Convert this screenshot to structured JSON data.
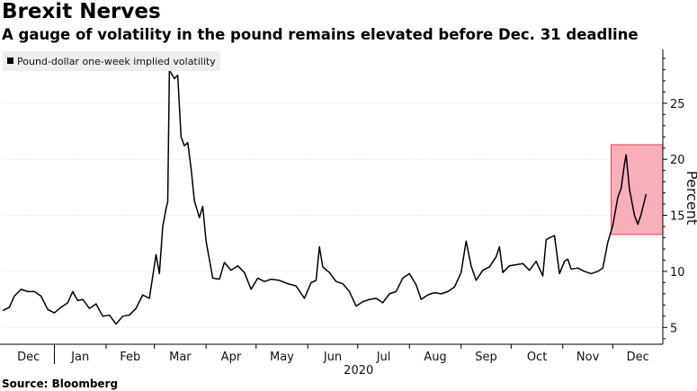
{
  "header": {
    "title": "Brexit Nerves",
    "subtitle": "A gauge of volatility in the pound remains elevated before Dec. 31 deadline"
  },
  "footer": {
    "source": "Source: Bloomberg"
  },
  "colors": {
    "line": "#000000",
    "grid": "#d9d9d9",
    "highlight_fill": "#f7a1ae",
    "highlight_stroke": "#e8394f",
    "legend_bg": "#eeeeee"
  },
  "chart_data": {
    "type": "line",
    "title": "Brexit Nerves",
    "subtitle": "A gauge of volatility in the pound remains elevated before Dec. 31 deadline",
    "ylabel": "Percent",
    "xlabel": "2020",
    "ylim": [
      3.5,
      29.8
    ],
    "yticks": [
      5,
      10,
      15,
      20,
      25
    ],
    "y_axis_side": "right",
    "grid": "horizontal dotted",
    "legend": "top-left",
    "x_start": "2019-12-01",
    "x_end": "2020-12-31",
    "x_tick_labels": [
      "Dec",
      "Jan",
      "Feb",
      "Mar",
      "Apr",
      "May",
      "Jun",
      "Jul",
      "Aug",
      "Sep",
      "Oct",
      "Nov",
      "Dec"
    ],
    "x_year_label": "2020",
    "series": [
      {
        "name": "Pound-dollar one-week implied volatility",
        "color": "#000000",
        "points": [
          [
            "2019-12-01",
            6.5
          ],
          [
            "2019-12-05",
            6.8
          ],
          [
            "2019-12-08",
            7.8
          ],
          [
            "2019-12-12",
            8.4
          ],
          [
            "2019-12-16",
            8.2
          ],
          [
            "2019-12-20",
            8.2
          ],
          [
            "2019-12-24",
            7.8
          ],
          [
            "2019-12-28",
            6.6
          ],
          [
            "2020-01-01",
            6.3
          ],
          [
            "2020-01-05",
            6.8
          ],
          [
            "2020-01-09",
            7.2
          ],
          [
            "2020-01-12",
            8.2
          ],
          [
            "2020-01-15",
            7.4
          ],
          [
            "2020-01-18",
            7.5
          ],
          [
            "2020-01-22",
            6.7
          ],
          [
            "2020-01-26",
            7.1
          ],
          [
            "2020-01-30",
            6.0
          ],
          [
            "2020-02-03",
            6.1
          ],
          [
            "2020-02-07",
            5.3
          ],
          [
            "2020-02-11",
            6.0
          ],
          [
            "2020-02-15",
            6.1
          ],
          [
            "2020-02-19",
            6.7
          ],
          [
            "2020-02-23",
            7.9
          ],
          [
            "2020-02-27",
            7.6
          ],
          [
            "2020-03-02",
            11.5
          ],
          [
            "2020-03-04",
            9.8
          ],
          [
            "2020-03-06",
            14.0
          ],
          [
            "2020-03-08",
            15.6
          ],
          [
            "2020-03-09",
            16.2
          ],
          [
            "2020-03-10",
            27.9
          ],
          [
            "2020-03-11",
            27.7
          ],
          [
            "2020-03-13",
            27.2
          ],
          [
            "2020-03-15",
            27.5
          ],
          [
            "2020-03-17",
            22.0
          ],
          [
            "2020-03-19",
            21.2
          ],
          [
            "2020-03-21",
            21.5
          ],
          [
            "2020-03-23",
            19.2
          ],
          [
            "2020-03-25",
            16.3
          ],
          [
            "2020-03-28",
            14.8
          ],
          [
            "2020-03-30",
            15.8
          ],
          [
            "2020-04-01",
            12.7
          ],
          [
            "2020-04-05",
            9.4
          ],
          [
            "2020-04-09",
            9.3
          ],
          [
            "2020-04-12",
            10.8
          ],
          [
            "2020-04-16",
            10.1
          ],
          [
            "2020-04-20",
            10.5
          ],
          [
            "2020-04-24",
            9.9
          ],
          [
            "2020-04-28",
            8.4
          ],
          [
            "2020-05-02",
            9.4
          ],
          [
            "2020-05-06",
            9.1
          ],
          [
            "2020-05-10",
            9.3
          ],
          [
            "2020-05-15",
            9.2
          ],
          [
            "2020-05-20",
            8.9
          ],
          [
            "2020-05-25",
            8.7
          ],
          [
            "2020-05-30",
            7.6
          ],
          [
            "2020-06-03",
            9.0
          ],
          [
            "2020-06-06",
            9.2
          ],
          [
            "2020-06-08",
            12.2
          ],
          [
            "2020-06-10",
            10.4
          ],
          [
            "2020-06-14",
            9.9
          ],
          [
            "2020-06-18",
            9.1
          ],
          [
            "2020-06-22",
            8.9
          ],
          [
            "2020-06-26",
            8.2
          ],
          [
            "2020-06-30",
            6.9
          ],
          [
            "2020-07-04",
            7.3
          ],
          [
            "2020-07-08",
            7.5
          ],
          [
            "2020-07-12",
            7.6
          ],
          [
            "2020-07-16",
            7.2
          ],
          [
            "2020-07-20",
            8.0
          ],
          [
            "2020-07-24",
            8.2
          ],
          [
            "2020-07-28",
            9.4
          ],
          [
            "2020-08-01",
            9.8
          ],
          [
            "2020-08-05",
            8.8
          ],
          [
            "2020-08-08",
            7.5
          ],
          [
            "2020-08-12",
            7.9
          ],
          [
            "2020-08-16",
            8.1
          ],
          [
            "2020-08-20",
            8.0
          ],
          [
            "2020-08-24",
            8.2
          ],
          [
            "2020-08-28",
            8.6
          ],
          [
            "2020-09-01",
            9.9
          ],
          [
            "2020-09-04",
            12.7
          ],
          [
            "2020-09-07",
            10.5
          ],
          [
            "2020-09-10",
            9.2
          ],
          [
            "2020-09-14",
            10.1
          ],
          [
            "2020-09-18",
            10.4
          ],
          [
            "2020-09-22",
            11.3
          ],
          [
            "2020-09-24",
            12.2
          ],
          [
            "2020-09-26",
            9.9
          ],
          [
            "2020-09-30",
            10.5
          ],
          [
            "2020-10-04",
            10.6
          ],
          [
            "2020-10-08",
            10.7
          ],
          [
            "2020-10-12",
            10.1
          ],
          [
            "2020-10-16",
            10.9
          ],
          [
            "2020-10-20",
            9.6
          ],
          [
            "2020-10-22",
            12.8
          ],
          [
            "2020-10-24",
            13.0
          ],
          [
            "2020-10-27",
            13.2
          ],
          [
            "2020-10-30",
            9.8
          ],
          [
            "2020-11-02",
            10.9
          ],
          [
            "2020-11-04",
            11.1
          ],
          [
            "2020-11-06",
            10.2
          ],
          [
            "2020-11-10",
            10.3
          ],
          [
            "2020-11-14",
            10.0
          ],
          [
            "2020-11-18",
            9.8
          ],
          [
            "2020-11-22",
            10.0
          ],
          [
            "2020-11-25",
            10.3
          ],
          [
            "2020-11-28",
            12.6
          ],
          [
            "2020-12-01",
            14.1
          ],
          [
            "2020-12-04",
            16.6
          ],
          [
            "2020-12-06",
            17.4
          ],
          [
            "2020-12-08",
            19.6
          ],
          [
            "2020-12-09",
            20.4
          ],
          [
            "2020-12-11",
            17.3
          ],
          [
            "2020-12-14",
            15.0
          ],
          [
            "2020-12-16",
            14.2
          ],
          [
            "2020-12-18",
            15.1
          ],
          [
            "2020-12-21",
            16.9
          ]
        ]
      }
    ],
    "annotations": [
      {
        "type": "highlight_box",
        "x_range": [
          "2020-11-30",
          "2020-12-31"
        ],
        "y_range": [
          13.3,
          21.3
        ],
        "color": "#f7a1ae"
      }
    ]
  }
}
